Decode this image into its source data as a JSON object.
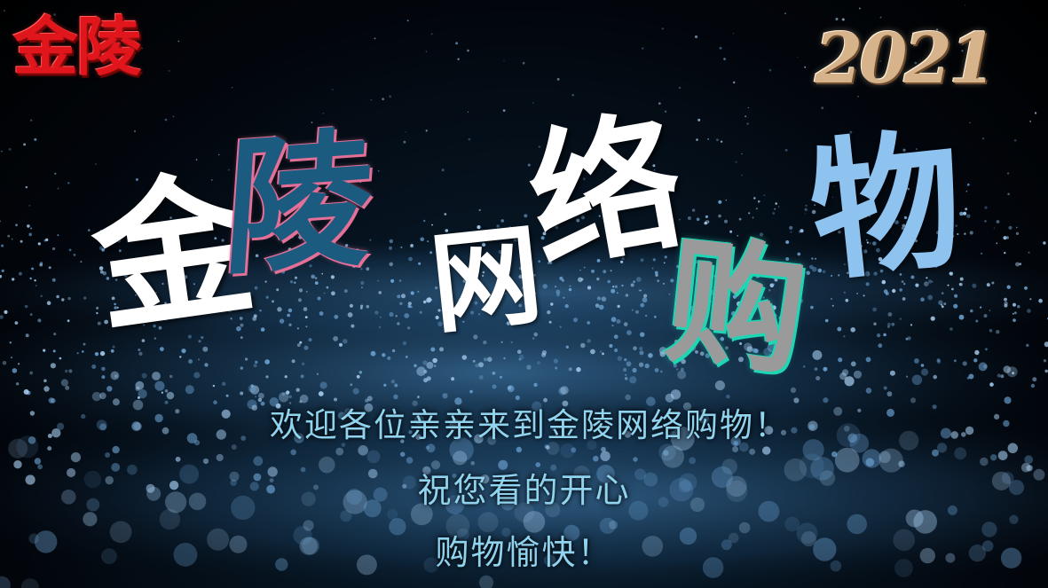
{
  "brand": {
    "logo_text": "金陵",
    "year_text": "2021"
  },
  "title": {
    "chars": [
      "金",
      "陵",
      "网",
      "络",
      "购",
      "物"
    ]
  },
  "message": {
    "line1": "欢迎各位亲亲来到金陵网络购物！",
    "line2": "祝您看的开心",
    "line3": "购物愉快！"
  },
  "colors": {
    "logo_red": "#e0161c",
    "gold": "#d7b38b",
    "deep_blue": "#1b5b80",
    "pink_glow": "#e46f97",
    "teal_glow": "#1fd6b4",
    "sky_blue": "#8ec2ef",
    "text_cyan": "#8fd3ee"
  }
}
